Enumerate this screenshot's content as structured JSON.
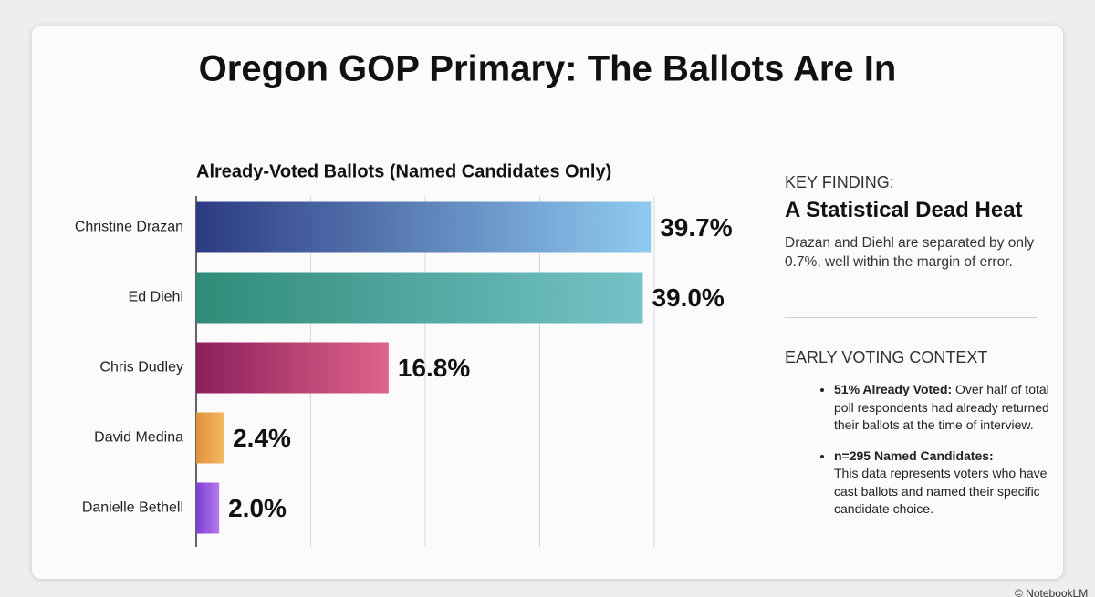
{
  "chart_data": {
    "type": "hbar",
    "title": "Oregon GOP Primary: The Ballots Are In",
    "subtitle": "Already-Voted Ballots (Named Candidates Only)",
    "categories": [
      "Christine Drazan",
      "Ed Diehl",
      "Chris Dudley",
      "David Medina",
      "Danielle Bethell"
    ],
    "values": [
      39.7,
      39.0,
      16.8,
      2.4,
      2.0
    ],
    "value_labels": [
      "39.7%",
      "39.0%",
      "16.8%",
      "2.4%",
      "2.0%"
    ],
    "colors": [
      [
        "#2c3b83",
        "#8fcbf0"
      ],
      [
        "#2f8c78",
        "#76c3c9"
      ],
      [
        "#8c1f5c",
        "#e0638a"
      ],
      [
        "#e0923c",
        "#f6b860"
      ],
      [
        "#7a3fcf",
        "#b57bf0"
      ]
    ],
    "xlim": [
      0,
      40
    ],
    "xticks": [
      0,
      10,
      20,
      30,
      40
    ],
    "grid": true
  },
  "panel": {
    "key_finding_label": "KEY FINDING:",
    "key_finding_title": "A Statistical Dead Heat",
    "key_finding_text": "Drazan and Diehl are separated by only 0.7%, well within the margin of error.",
    "context_title": "EARLY VOTING CONTEXT",
    "bullets": [
      {
        "lead": "51% Already Voted:",
        "text": "Over half of total poll respondents had already returned their ballots at the time of interview."
      },
      {
        "lead": "n=295 Named Candidates:",
        "text": "This data represents voters who have cast ballots and named their specific candidate choice."
      }
    ]
  },
  "footer": "© NotebookLM"
}
